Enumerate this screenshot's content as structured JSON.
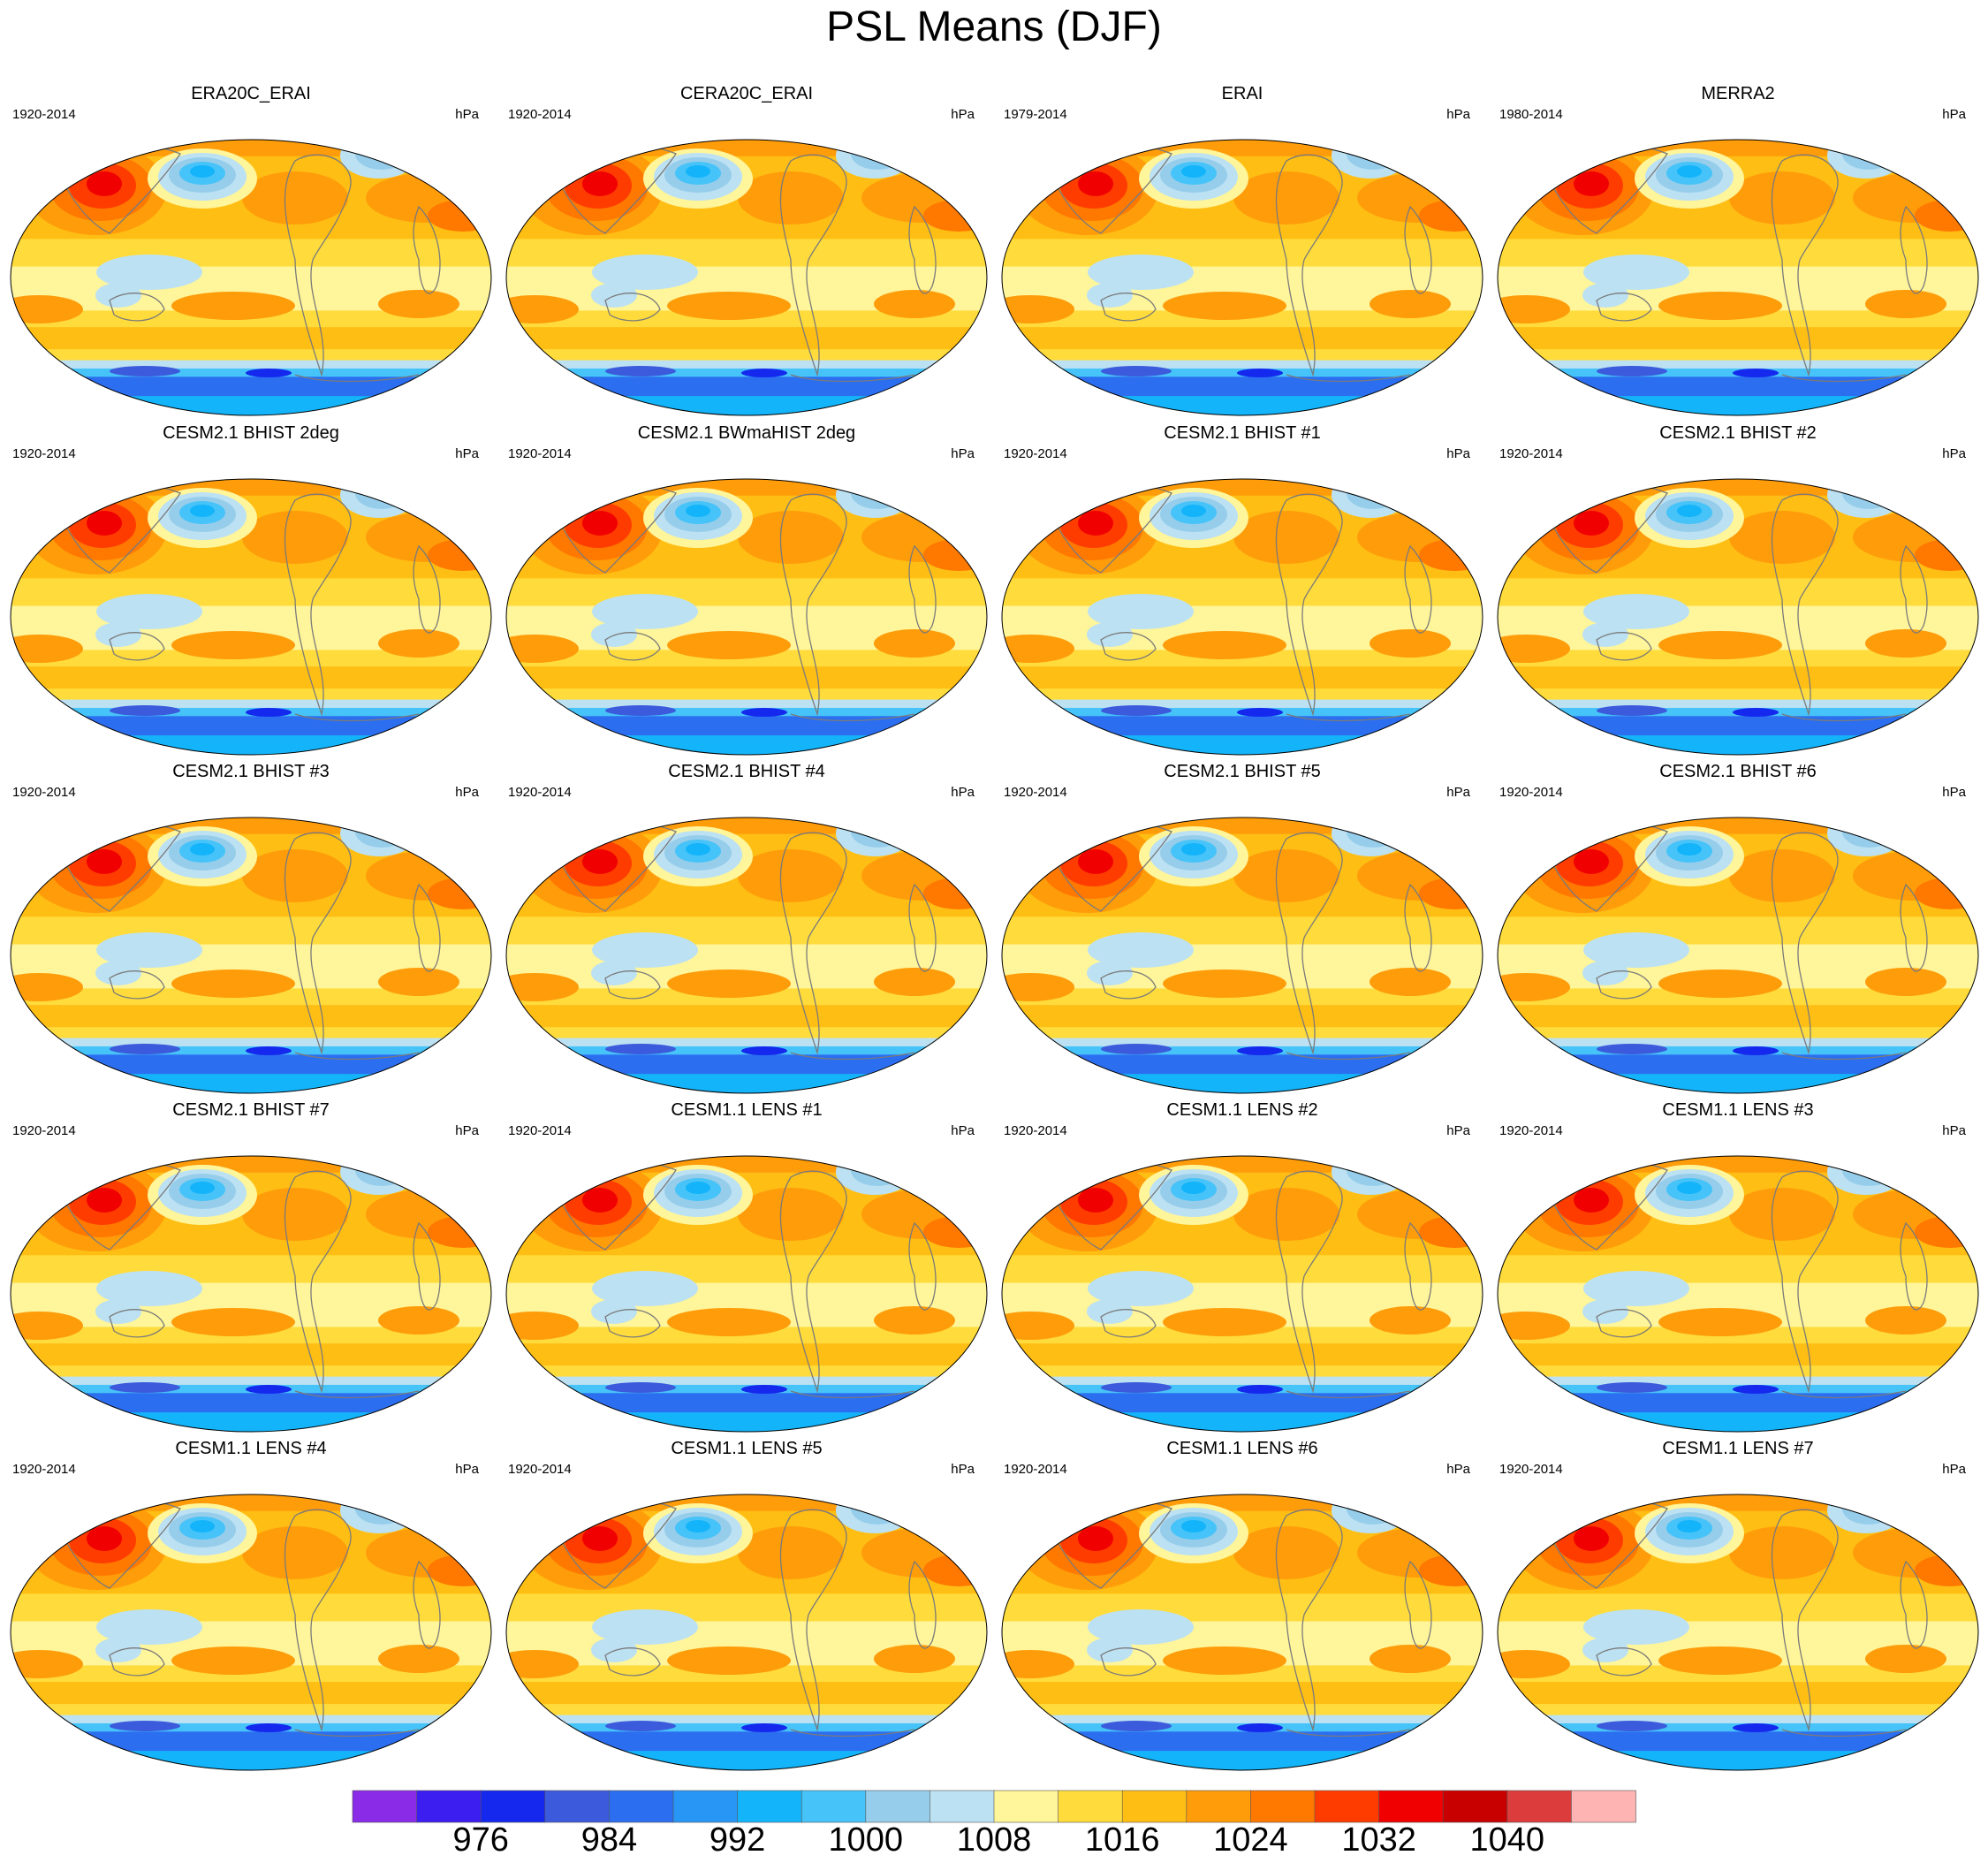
{
  "title": "PSL Means (DJF)",
  "panels": [
    {
      "title": "ERA20C_ERAI",
      "years": "1920-2014",
      "units": "hPa"
    },
    {
      "title": "CERA20C_ERAI",
      "years": "1920-2014",
      "units": "hPa"
    },
    {
      "title": "ERAI",
      "years": "1979-2014",
      "units": "hPa"
    },
    {
      "title": "MERRA2",
      "years": "1980-2014",
      "units": "hPa"
    },
    {
      "title": "CESM2.1 BHIST 2deg",
      "years": "1920-2014",
      "units": "hPa"
    },
    {
      "title": "CESM2.1 BWmaHIST 2deg",
      "years": "1920-2014",
      "units": "hPa"
    },
    {
      "title": "CESM2.1 BHIST #1",
      "years": "1920-2014",
      "units": "hPa"
    },
    {
      "title": "CESM2.1 BHIST #2",
      "years": "1920-2014",
      "units": "hPa"
    },
    {
      "title": "CESM2.1 BHIST #3",
      "years": "1920-2014",
      "units": "hPa"
    },
    {
      "title": "CESM2.1 BHIST #4",
      "years": "1920-2014",
      "units": "hPa"
    },
    {
      "title": "CESM2.1 BHIST #5",
      "years": "1920-2014",
      "units": "hPa"
    },
    {
      "title": "CESM2.1 BHIST #6",
      "years": "1920-2014",
      "units": "hPa"
    },
    {
      "title": "CESM2.1 BHIST #7",
      "years": "1920-2014",
      "units": "hPa"
    },
    {
      "title": "CESM1.1 LENS #1",
      "years": "1920-2014",
      "units": "hPa"
    },
    {
      "title": "CESM1.1 LENS #2",
      "years": "1920-2014",
      "units": "hPa"
    },
    {
      "title": "CESM1.1 LENS #3",
      "years": "1920-2014",
      "units": "hPa"
    },
    {
      "title": "CESM1.1 LENS #4",
      "years": "1920-2014",
      "units": "hPa"
    },
    {
      "title": "CESM1.1 LENS #5",
      "years": "1920-2014",
      "units": "hPa"
    },
    {
      "title": "CESM1.1 LENS #6",
      "years": "1920-2014",
      "units": "hPa"
    },
    {
      "title": "CESM1.1 LENS #7",
      "years": "1920-2014",
      "units": "hPa"
    }
  ],
  "colorbar": {
    "colors": [
      "#8a2be8",
      "#3c1ef0",
      "#1428ee",
      "#3c5adc",
      "#2c6ef0",
      "#2896f5",
      "#14b4fa",
      "#46c3f8",
      "#96cdeb",
      "#bce1f3",
      "#fff59a",
      "#ffdc3c",
      "#ffbe14",
      "#ff9c0a",
      "#ff7800",
      "#ff3c00",
      "#f00000",
      "#c80000",
      "#dc3c3c",
      "#ffb4b4"
    ],
    "label_values": [
      "976",
      "984",
      "992",
      "1000",
      "1008",
      "1016",
      "1024",
      "1032",
      "1040"
    ]
  }
}
